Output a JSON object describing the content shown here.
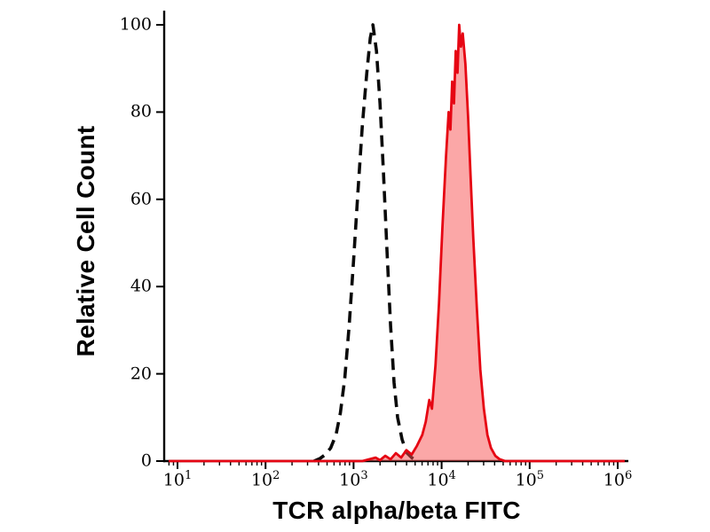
{
  "chart_data": {
    "type": "line",
    "subtype": "flow-cytometry-histogram",
    "title": "",
    "xlabel": "TCR alpha/beta FITC",
    "ylabel": "Relative Cell Count",
    "x_scale": "log10",
    "xlim_log10": [
      0.85,
      6.12
    ],
    "ylim": [
      0,
      100
    ],
    "y_ticks": [
      0,
      20,
      40,
      60,
      80,
      100
    ],
    "x_tick_base": "10",
    "x_tick_exponents": [
      1,
      2,
      3,
      4,
      5,
      6
    ],
    "grid": false,
    "legend": "none",
    "axis_color": "#000000",
    "series": [
      {
        "name": "control-dashed",
        "line_style": "dashed",
        "color": "#0a0a0a",
        "fill": "none",
        "stroke_width": 3.6,
        "dash": "13 8",
        "peak_log10x": 3.22,
        "peak_y": 100,
        "points": [
          [
            2.55,
            0
          ],
          [
            2.62,
            0.6
          ],
          [
            2.68,
            1.5
          ],
          [
            2.74,
            3
          ],
          [
            2.8,
            6
          ],
          [
            2.85,
            11
          ],
          [
            2.9,
            19
          ],
          [
            2.95,
            31
          ],
          [
            3.0,
            46
          ],
          [
            3.05,
            62
          ],
          [
            3.1,
            77
          ],
          [
            3.15,
            89
          ],
          [
            3.19,
            97
          ],
          [
            3.22,
            100
          ],
          [
            3.26,
            94
          ],
          [
            3.3,
            82
          ],
          [
            3.34,
            66
          ],
          [
            3.38,
            48
          ],
          [
            3.42,
            31
          ],
          [
            3.46,
            18
          ],
          [
            3.5,
            10
          ],
          [
            3.55,
            5
          ],
          [
            3.6,
            2
          ],
          [
            3.66,
            0.8
          ],
          [
            3.72,
            0
          ]
        ]
      },
      {
        "name": "tcr-alpha-beta-fitc-red",
        "line_style": "solid",
        "color": "#e60613",
        "fill": "rgba(247,80,80,0.50)",
        "stroke_width": 2.8,
        "dash": "",
        "peak_log10x": 4.2,
        "peak_y": 100,
        "points": [
          [
            0.9,
            0
          ],
          [
            1.5,
            0
          ],
          [
            2.2,
            0
          ],
          [
            2.8,
            0
          ],
          [
            3.1,
            0
          ],
          [
            3.25,
            0.8
          ],
          [
            3.3,
            0.2
          ],
          [
            3.36,
            1.2
          ],
          [
            3.42,
            0.4
          ],
          [
            3.48,
            1.8
          ],
          [
            3.54,
            0.8
          ],
          [
            3.6,
            2.5
          ],
          [
            3.66,
            1.5
          ],
          [
            3.72,
            3.5
          ],
          [
            3.78,
            6
          ],
          [
            3.82,
            9
          ],
          [
            3.86,
            14
          ],
          [
            3.89,
            12
          ],
          [
            3.93,
            22
          ],
          [
            3.97,
            36
          ],
          [
            4.01,
            54
          ],
          [
            4.05,
            70
          ],
          [
            4.08,
            80
          ],
          [
            4.1,
            76
          ],
          [
            4.12,
            87
          ],
          [
            4.14,
            82
          ],
          [
            4.16,
            94
          ],
          [
            4.18,
            89
          ],
          [
            4.2,
            100
          ],
          [
            4.22,
            95
          ],
          [
            4.24,
            98
          ],
          [
            4.27,
            91
          ],
          [
            4.3,
            79
          ],
          [
            4.33,
            65
          ],
          [
            4.36,
            51
          ],
          [
            4.4,
            35
          ],
          [
            4.44,
            21
          ],
          [
            4.48,
            12
          ],
          [
            4.52,
            6
          ],
          [
            4.56,
            3
          ],
          [
            4.61,
            1.2
          ],
          [
            4.66,
            0.4
          ],
          [
            4.72,
            0
          ],
          [
            5.1,
            0
          ],
          [
            5.6,
            0
          ],
          [
            6.08,
            0
          ]
        ]
      }
    ]
  }
}
